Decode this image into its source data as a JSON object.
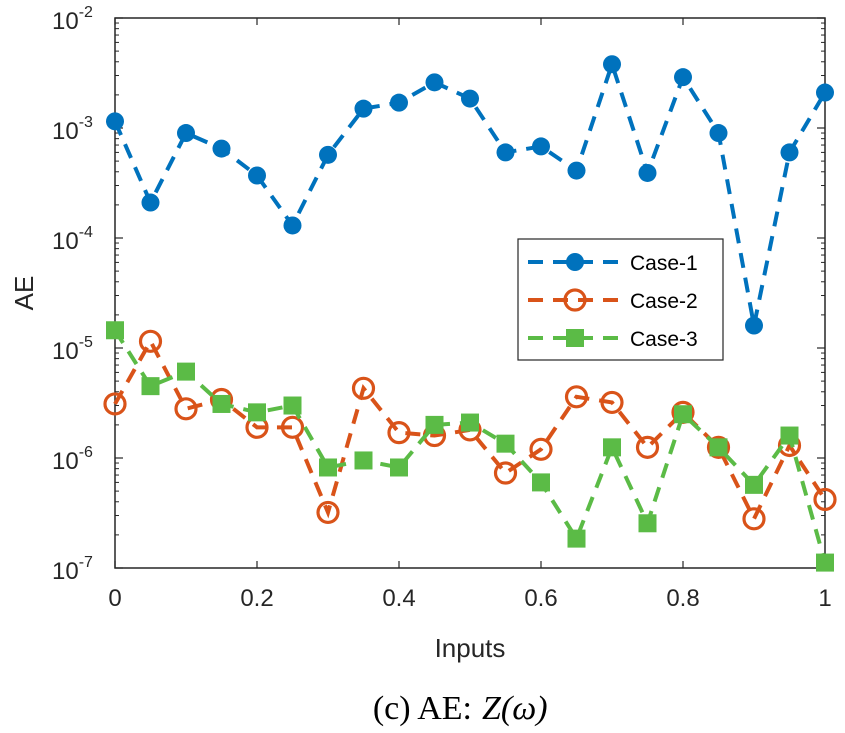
{
  "chart_data": {
    "type": "line",
    "xlabel": "Inputs",
    "ylabel": "AE",
    "yscale": "log",
    "xlim": [
      0,
      1
    ],
    "ylim": [
      1e-07,
      0.01
    ],
    "x_ticks": [
      "0",
      "0.2",
      "0.4",
      "0.6",
      "0.8",
      "1"
    ],
    "y_ticks": [
      {
        "base": "10",
        "exp": "-7"
      },
      {
        "base": "10",
        "exp": "-6"
      },
      {
        "base": "10",
        "exp": "-5"
      },
      {
        "base": "10",
        "exp": "-4"
      },
      {
        "base": "10",
        "exp": "-3"
      },
      {
        "base": "10",
        "exp": "-2"
      }
    ],
    "x": [
      0,
      0.05,
      0.1,
      0.15,
      0.2,
      0.25,
      0.3,
      0.35,
      0.4,
      0.45,
      0.5,
      0.55,
      0.6,
      0.65,
      0.7,
      0.75,
      0.8,
      0.85,
      0.9,
      0.95,
      1
    ],
    "series": [
      {
        "name": "Case-1",
        "color": "#0072BD",
        "marker": "filled-circle",
        "values": [
          0.00115,
          0.00021,
          0.0009,
          0.00065,
          0.00037,
          0.00013,
          0.00057,
          0.0015,
          0.0017,
          0.0026,
          0.00185,
          0.0006,
          0.00068,
          0.00041,
          0.0038,
          0.00039,
          0.0029,
          0.0009,
          1.6e-05,
          0.0006,
          0.0021
        ]
      },
      {
        "name": "Case-2",
        "color": "#D95319",
        "marker": "open-circle",
        "values": [
          3.1e-06,
          1.15e-05,
          2.8e-06,
          3.4e-06,
          1.9e-06,
          1.9e-06,
          3.2e-07,
          4.3e-06,
          1.7e-06,
          1.6e-06,
          1.8e-06,
          7.3e-07,
          1.2e-06,
          3.6e-06,
          3.2e-06,
          1.25e-06,
          2.6e-06,
          1.25e-06,
          2.8e-07,
          1.3e-06,
          4.2e-07
        ]
      },
      {
        "name": "Case-3",
        "color": "#5BBB46",
        "marker": "filled-square",
        "values": [
          1.45e-05,
          4.5e-06,
          6.1e-06,
          3.1e-06,
          2.6e-06,
          3e-06,
          8.2e-07,
          9.5e-07,
          8.2e-07,
          2e-06,
          2.1e-06,
          1.35e-06,
          6e-07,
          1.85e-07,
          1.25e-06,
          2.55e-07,
          2.5e-06,
          1.25e-06,
          5.7e-07,
          1.6e-06,
          1.12e-07
        ]
      }
    ],
    "legend_position": "right-middle"
  },
  "caption": {
    "prefix": "(c) AE:",
    "math": "Z(ω)"
  }
}
